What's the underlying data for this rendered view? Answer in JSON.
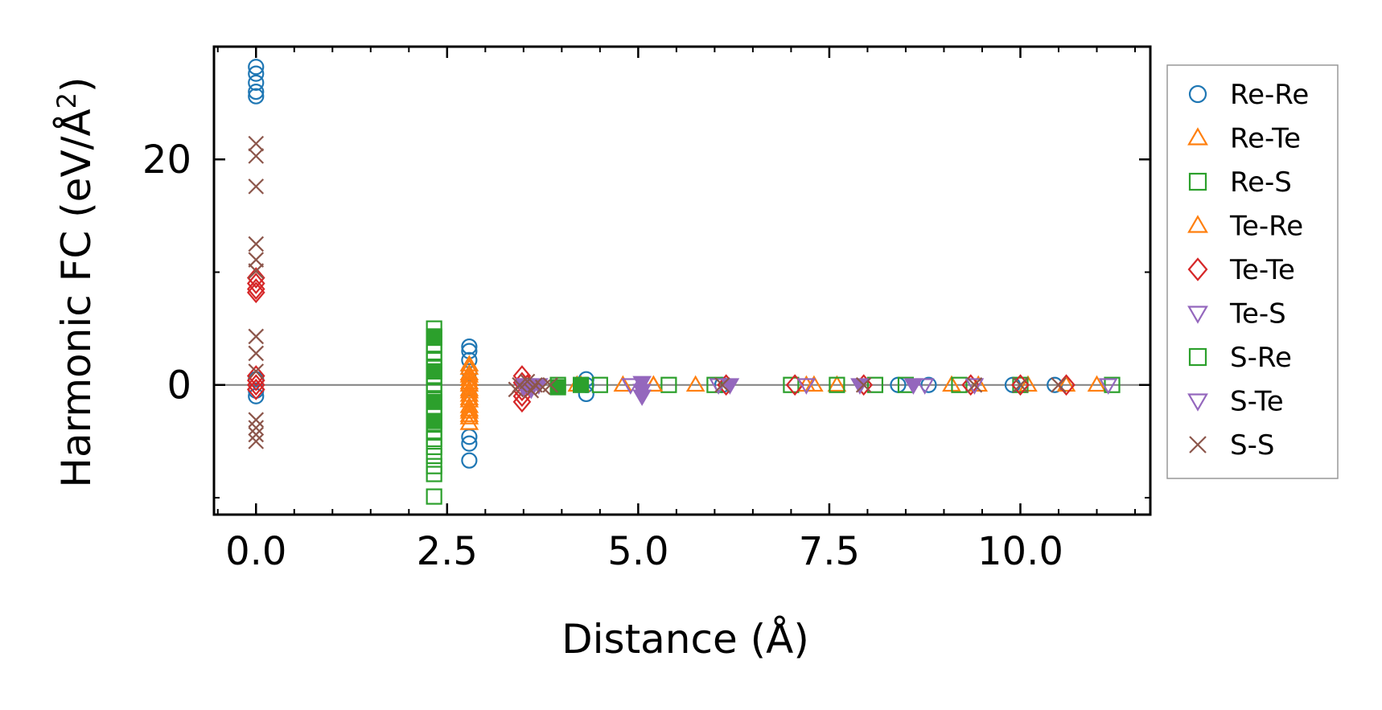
{
  "chart_data": {
    "type": "scatter",
    "xlabel": "Distance (Å)",
    "ylabel_main": "Harmonic FC (eV/Å",
    "ylabel_sup": "2",
    "ylabel_close": ")",
    "xlim": [
      -0.55,
      11.7
    ],
    "ylim": [
      -11.5,
      30
    ],
    "xticks_major": [
      0.0,
      2.5,
      5.0,
      7.5,
      10.0
    ],
    "xtick_labels": [
      "0.0",
      "2.5",
      "5.0",
      "7.5",
      "10.0"
    ],
    "yticks_major": [
      0,
      20
    ],
    "ytick_labels": [
      "0",
      "20"
    ],
    "zero_line": 0,
    "legend_position": "outside-right",
    "series": [
      {
        "name": "Re-Re",
        "marker": "circle",
        "color": "#1f77b4",
        "points": [
          [
            0,
            28.2
          ],
          [
            0,
            27.6
          ],
          [
            0,
            26.8
          ],
          [
            0,
            26.0
          ],
          [
            0,
            25.6
          ],
          [
            0,
            0.5
          ],
          [
            0,
            -0.5
          ],
          [
            0,
            -1.0
          ],
          [
            2.79,
            3.4
          ],
          [
            2.79,
            3.0
          ],
          [
            2.79,
            2.2
          ],
          [
            2.79,
            1.2
          ],
          [
            2.79,
            -0.3
          ],
          [
            2.79,
            -4.6
          ],
          [
            2.79,
            -5.2
          ],
          [
            2.79,
            -6.7
          ],
          [
            4.32,
            0.5
          ],
          [
            4.32,
            0
          ],
          [
            4.32,
            -0.8
          ],
          [
            6.1,
            0
          ],
          [
            8.4,
            0
          ],
          [
            8.8,
            0
          ],
          [
            9.9,
            0
          ],
          [
            10.45,
            0
          ]
        ]
      },
      {
        "name": "Re-Te",
        "marker": "triangle-up",
        "color": "#ff7f0e",
        "points": [
          [
            2.79,
            1.8
          ],
          [
            2.79,
            1.0
          ],
          [
            2.79,
            0.5
          ],
          [
            2.79,
            0
          ],
          [
            2.79,
            -0.4
          ],
          [
            2.79,
            -0.9
          ],
          [
            2.79,
            -1.4
          ],
          [
            2.79,
            -1.9
          ],
          [
            2.79,
            -2.4
          ],
          [
            2.79,
            -2.9
          ],
          [
            2.79,
            -3.4
          ],
          [
            4.2,
            0
          ],
          [
            4.8,
            0
          ],
          [
            5.2,
            0
          ],
          [
            5.75,
            0
          ],
          [
            7.2,
            0
          ],
          [
            7.6,
            0
          ],
          [
            9.1,
            0
          ],
          [
            10.1,
            0
          ],
          [
            10.6,
            0
          ],
          [
            11.0,
            0
          ]
        ]
      },
      {
        "name": "Re-S",
        "marker": "square",
        "color": "#2ca02c",
        "points": [
          [
            2.33,
            5.0
          ],
          [
            2.33,
            4.3
          ],
          [
            2.33,
            3.6
          ],
          [
            2.33,
            2.9
          ],
          [
            2.33,
            2.2
          ],
          [
            2.33,
            1.5
          ],
          [
            2.33,
            0.8
          ],
          [
            2.33,
            0.1
          ],
          [
            2.33,
            -0.6
          ],
          [
            2.33,
            -1.3
          ],
          [
            2.33,
            -2.0
          ],
          [
            2.33,
            -2.7
          ],
          [
            2.33,
            -3.4
          ],
          [
            2.33,
            -4.1
          ],
          [
            2.33,
            -4.8
          ],
          [
            2.33,
            -5.5
          ],
          [
            2.33,
            -6.3
          ],
          [
            2.33,
            -7.2
          ],
          [
            2.33,
            -7.9
          ],
          [
            2.33,
            -9.9
          ],
          [
            3.95,
            0
          ],
          [
            4.5,
            0
          ],
          [
            5.4,
            0
          ],
          [
            6.0,
            0
          ],
          [
            7.0,
            0
          ],
          [
            7.6,
            0
          ],
          [
            8.1,
            0
          ],
          [
            8.5,
            0
          ],
          [
            9.2,
            0
          ],
          [
            10.0,
            0
          ],
          [
            11.2,
            0
          ]
        ]
      },
      {
        "name": "Te-Re",
        "marker": "triangle-up",
        "color": "#ff7f0e",
        "points": [
          [
            2.79,
            1.5
          ],
          [
            2.79,
            0.8
          ],
          [
            2.79,
            0.2
          ],
          [
            2.79,
            -0.6
          ],
          [
            2.79,
            -1.2
          ],
          [
            2.79,
            -2.2
          ],
          [
            2.79,
            -2.7
          ],
          [
            4.25,
            0
          ],
          [
            5.2,
            0
          ],
          [
            7.3,
            0
          ],
          [
            9.45,
            0
          ]
        ]
      },
      {
        "name": "Te-Te",
        "marker": "diamond",
        "color": "#d62728",
        "points": [
          [
            0,
            9.5
          ],
          [
            0,
            9.0
          ],
          [
            0,
            8.5
          ],
          [
            0,
            8.2
          ],
          [
            0,
            0.8
          ],
          [
            0,
            0.4
          ],
          [
            0,
            0
          ],
          [
            0,
            -0.4
          ],
          [
            3.48,
            0.8
          ],
          [
            3.48,
            0.2
          ],
          [
            3.48,
            -0.5
          ],
          [
            3.48,
            -1.0
          ],
          [
            3.48,
            -1.5
          ],
          [
            3.55,
            0
          ],
          [
            6.15,
            0
          ],
          [
            7.05,
            0
          ],
          [
            7.95,
            0
          ],
          [
            9.35,
            0
          ],
          [
            10.0,
            0
          ],
          [
            10.6,
            0
          ]
        ]
      },
      {
        "name": "Te-S",
        "marker": "triangle-down-filled",
        "color": "#9467bd",
        "points": [
          [
            3.5,
            -0.2
          ],
          [
            3.55,
            0
          ],
          [
            3.6,
            -0.4
          ],
          [
            3.7,
            0
          ],
          [
            5.05,
            0.2
          ],
          [
            5.05,
            -0.5
          ],
          [
            5.05,
            -1.0
          ],
          [
            6.2,
            0
          ],
          [
            7.9,
            0
          ],
          [
            8.6,
            0
          ]
        ]
      },
      {
        "name": "S-Re",
        "marker": "square-filled",
        "color": "#2ca02c",
        "points": [
          [
            2.33,
            4.2
          ],
          [
            2.33,
            1.2
          ],
          [
            2.33,
            -1.5
          ],
          [
            2.33,
            -3.2
          ],
          [
            3.95,
            -0.2
          ],
          [
            4.25,
            0
          ]
        ]
      },
      {
        "name": "S-Te",
        "marker": "triangle-down",
        "color": "#9467bd",
        "points": [
          [
            3.52,
            0
          ],
          [
            4.9,
            0
          ],
          [
            6.05,
            0
          ],
          [
            7.2,
            0
          ],
          [
            8.75,
            0
          ],
          [
            9.4,
            0
          ],
          [
            11.15,
            0
          ]
        ]
      },
      {
        "name": "S-S",
        "marker": "x",
        "color": "#8c564b",
        "points": [
          [
            0,
            21.4
          ],
          [
            0,
            20.3
          ],
          [
            0,
            17.6
          ],
          [
            0,
            12.5
          ],
          [
            0,
            11.1
          ],
          [
            0,
            10.1
          ],
          [
            0,
            4.3
          ],
          [
            0,
            2.8
          ],
          [
            0,
            1.2
          ],
          [
            0,
            -3.1
          ],
          [
            0,
            -3.8
          ],
          [
            0,
            -4.4
          ],
          [
            0,
            -5.0
          ],
          [
            3.4,
            -0.4
          ],
          [
            3.45,
            0
          ],
          [
            3.55,
            0.3
          ],
          [
            3.6,
            -0.5
          ],
          [
            3.65,
            0
          ],
          [
            3.75,
            -0.2
          ],
          [
            3.85,
            0
          ],
          [
            6.1,
            0
          ],
          [
            7.95,
            0
          ],
          [
            9.4,
            0
          ],
          [
            10.0,
            0
          ],
          [
            10.5,
            0
          ]
        ]
      }
    ],
    "legend_entries": [
      {
        "label": "Re-Re",
        "marker": "circle",
        "color": "#1f77b4"
      },
      {
        "label": "Re-Te",
        "marker": "triangle-up",
        "color": "#ff7f0e"
      },
      {
        "label": "Re-S",
        "marker": "square",
        "color": "#2ca02c"
      },
      {
        "label": "Te-Re",
        "marker": "triangle-up",
        "color": "#ff7f0e"
      },
      {
        "label": "Te-Te",
        "marker": "diamond",
        "color": "#d62728"
      },
      {
        "label": "Te-S",
        "marker": "triangle-down",
        "color": "#9467bd"
      },
      {
        "label": "S-Re",
        "marker": "square",
        "color": "#2ca02c"
      },
      {
        "label": "S-Te",
        "marker": "triangle-down",
        "color": "#9467bd"
      },
      {
        "label": "S-S",
        "marker": "x",
        "color": "#8c564b"
      }
    ]
  }
}
